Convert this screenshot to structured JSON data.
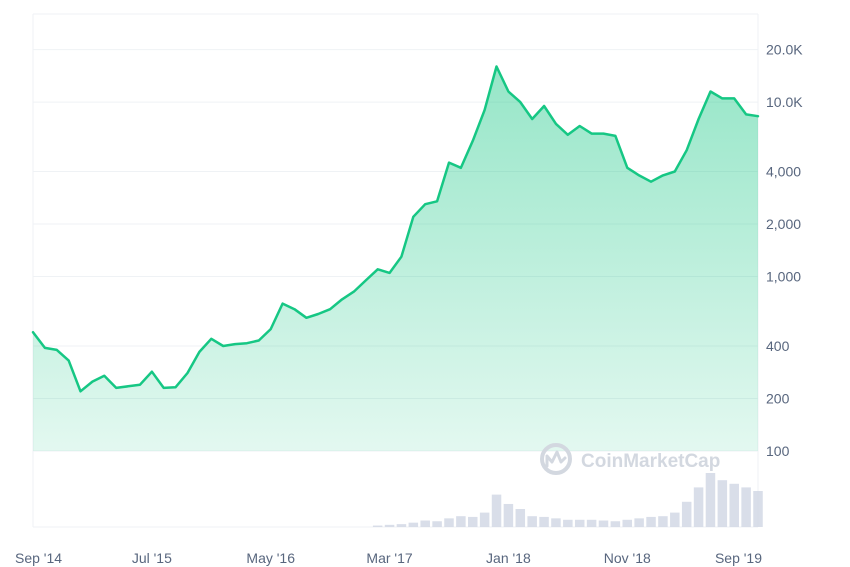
{
  "chart_data": {
    "type": "area",
    "brand": "CoinMarketCap",
    "y_scale": "log",
    "ylim": [
      100,
      32000
    ],
    "y_ticks": [
      {
        "value": 20000,
        "label": "20.0K"
      },
      {
        "value": 10000,
        "label": "10.0K"
      },
      {
        "value": 4000,
        "label": "4,000"
      },
      {
        "value": 2000,
        "label": "2,000"
      },
      {
        "value": 1000,
        "label": "1,000"
      },
      {
        "value": 400,
        "label": "400"
      },
      {
        "value": 200,
        "label": "200"
      },
      {
        "value": 100,
        "label": "100"
      }
    ],
    "x_ticks": [
      {
        "date": "2014-09",
        "label": "Sep '14"
      },
      {
        "date": "2015-07",
        "label": "Jul '15"
      },
      {
        "date": "2016-05",
        "label": "May '16"
      },
      {
        "date": "2017-03",
        "label": "Mar '17"
      },
      {
        "date": "2018-01",
        "label": "Jan '18"
      },
      {
        "date": "2018-11",
        "label": "Nov '18"
      },
      {
        "date": "2019-09",
        "label": "Sep '19"
      }
    ],
    "x_range": [
      "2014-09",
      "2019-10"
    ],
    "grid": true,
    "colors": {
      "line": "#16c784",
      "fill": "#16c784",
      "grid": "#eff2f5",
      "axis_text": "#58667e",
      "volume": "#cfd6e4",
      "watermark": "#d3d8e0"
    },
    "series": [
      {
        "x": [
          "2014-09",
          "2014-10",
          "2014-11",
          "2014-12",
          "2015-01",
          "2015-02",
          "2015-03",
          "2015-04",
          "2015-05",
          "2015-06",
          "2015-07",
          "2015-08",
          "2015-09",
          "2015-10",
          "2015-11",
          "2015-12",
          "2016-01",
          "2016-02",
          "2016-03",
          "2016-04",
          "2016-05",
          "2016-06",
          "2016-07",
          "2016-08",
          "2016-09",
          "2016-10",
          "2016-11",
          "2016-12",
          "2017-01",
          "2017-02",
          "2017-03",
          "2017-04",
          "2017-05",
          "2017-06",
          "2017-07",
          "2017-08",
          "2017-09",
          "2017-10",
          "2017-11",
          "2017-12",
          "2018-01",
          "2018-02",
          "2018-03",
          "2018-04",
          "2018-05",
          "2018-06",
          "2018-07",
          "2018-08",
          "2018-09",
          "2018-10",
          "2018-11",
          "2018-12",
          "2019-01",
          "2019-02",
          "2019-03",
          "2019-04",
          "2019-05",
          "2019-06",
          "2019-07",
          "2019-08",
          "2019-09",
          "2019-10"
        ],
        "values": [
          480,
          390,
          380,
          330,
          220,
          250,
          270,
          230,
          235,
          240,
          285,
          230,
          232,
          280,
          370,
          440,
          400,
          410,
          415,
          430,
          500,
          700,
          650,
          580,
          610,
          650,
          740,
          820,
          950,
          1100,
          1050,
          1300,
          2200,
          2600,
          2700,
          4500,
          4200,
          6000,
          9000,
          16000,
          11500,
          10000,
          8000,
          9500,
          7500,
          6500,
          7300,
          6600,
          6600,
          6400,
          4200,
          3800,
          3500,
          3800,
          4000,
          5300,
          8000,
          11500,
          10500,
          10500,
          8500,
          8300
        ]
      }
    ],
    "volume_relative": [
      0,
      0,
      0,
      0,
      0,
      0,
      0,
      0,
      0,
      0,
      0,
      0,
      0,
      0,
      0,
      0,
      0,
      0,
      0,
      0,
      0,
      0,
      0,
      0,
      0,
      0,
      0,
      0,
      0,
      0.02,
      0.03,
      0.04,
      0.06,
      0.09,
      0.08,
      0.12,
      0.15,
      0.14,
      0.2,
      0.45,
      0.32,
      0.25,
      0.15,
      0.14,
      0.12,
      0.1,
      0.1,
      0.1,
      0.09,
      0.08,
      0.1,
      0.12,
      0.14,
      0.15,
      0.2,
      0.35,
      0.55,
      0.75,
      0.65,
      0.6,
      0.55,
      0.5
    ]
  }
}
